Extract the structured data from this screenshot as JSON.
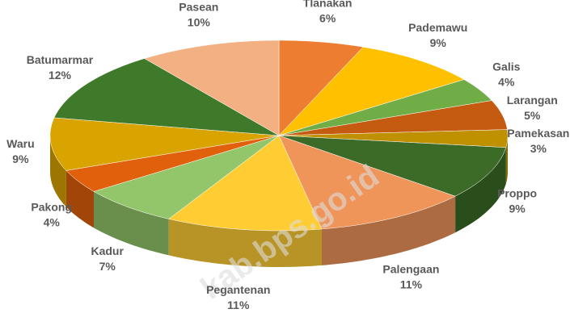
{
  "chart_data": {
    "type": "pie3d",
    "watermark": "kab.bps.go.id",
    "categories": [
      "Tlanakan",
      "Pademawu",
      "Galis",
      "Larangan",
      "Pamekasan",
      "Proppo",
      "Palengaan",
      "Pegantenan",
      "Kadur",
      "Pakong",
      "Waru",
      "Batumarmar",
      "Pasean"
    ],
    "values": [
      6,
      9,
      4,
      5,
      3,
      9,
      11,
      11,
      7,
      4,
      9,
      12,
      10
    ],
    "value_labels": [
      "6%",
      "9%",
      "4%",
      "5%",
      "3%",
      "9%",
      "11%",
      "11%",
      "7%",
      "4%",
      "9%",
      "12%",
      "10%"
    ],
    "colors": [
      "#ed7d31",
      "#ffc000",
      "#70ad47",
      "#c55a11",
      "#bf9000",
      "#3b6b27",
      "#f0955a",
      "#ffcc33",
      "#93c56a",
      "#e0600c",
      "#d9a400",
      "#3f7a2b",
      "#f2b083"
    ]
  }
}
